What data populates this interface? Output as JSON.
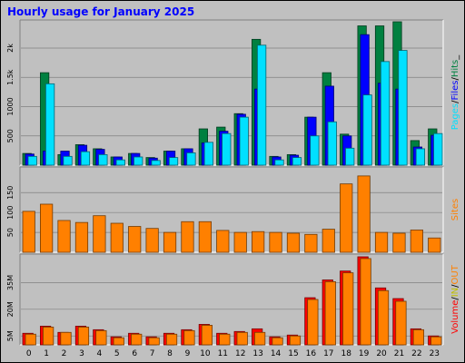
{
  "title": "Hourly usage for January 2025",
  "colors": {
    "frame_bg": "#c0c0c0",
    "plot_bg": "#c0c0c0",
    "title": "#0000ff",
    "hits": "#008040",
    "files": "#0000ff",
    "pages": "#00e0ff",
    "sites": "#ff8000",
    "volume": "#ff0000",
    "in": "#c0c000",
    "out": "#ff8000"
  },
  "chart_data": {
    "type": "bar",
    "categories": [
      "0",
      "1",
      "2",
      "3",
      "4",
      "5",
      "6",
      "7",
      "8",
      "9",
      "10",
      "11",
      "12",
      "13",
      "14",
      "15",
      "16",
      "17",
      "18",
      "19",
      "20",
      "21",
      "22",
      "23"
    ],
    "panels": [
      {
        "id": "usage",
        "ylabel": [
          "Pages",
          "/",
          "Files",
          "/",
          "Hits",
          "_"
        ],
        "ylabel_colors": [
          "#00e0ff",
          "#000000",
          "#0000ff",
          "#000000",
          "#008040",
          "#000000"
        ],
        "yticks": [
          {
            "value": 500,
            "label": "500"
          },
          {
            "value": 1000,
            "label": "1000"
          },
          {
            "value": 1500,
            "label": "1.5k"
          },
          {
            "value": 2000,
            "label": "2k"
          }
        ],
        "ylim": [
          0,
          2450
        ],
        "series": [
          {
            "name": "Hits",
            "color": "#008040",
            "values": [
              200,
              1580,
              180,
              350,
              280,
              140,
              200,
              130,
              240,
              280,
              620,
              650,
              880,
              2150,
              150,
              180,
              820,
              1580,
              530,
              2380,
              2380,
              2450,
              420,
              620
            ]
          },
          {
            "name": "Files",
            "color": "#0000ff",
            "values": [
              190,
              240,
              240,
              340,
              270,
              140,
              200,
              120,
              240,
              280,
              380,
              580,
              870,
              1300,
              140,
              170,
              820,
              1350,
              500,
              2230,
              1400,
              1300,
              310,
              510
            ]
          },
          {
            "name": "Pages",
            "color": "#00e0ff",
            "values": [
              150,
              1390,
              150,
              230,
              180,
              90,
              140,
              80,
              130,
              210,
              390,
              540,
              820,
              2050,
              90,
              130,
              500,
              740,
              290,
              1200,
              1770,
              1960,
              280,
              540
            ]
          }
        ]
      },
      {
        "id": "sites",
        "ylabel": [
          "Sites"
        ],
        "ylabel_colors": [
          "#ff8000"
        ],
        "yticks": [
          {
            "value": 50,
            "label": "50"
          },
          {
            "value": 100,
            "label": "100"
          },
          {
            "value": 150,
            "label": "150"
          }
        ],
        "ylim": [
          0,
          210
        ],
        "series": [
          {
            "name": "Sites",
            "color": "#ff8000",
            "values": [
              103,
              121,
              80,
              75,
              92,
              73,
              65,
              60,
              50,
              77,
              77,
              55,
              50,
              52,
              50,
              48,
              45,
              58,
              172,
              192,
              50,
              48,
              56,
              36
            ]
          }
        ]
      },
      {
        "id": "volume",
        "ylabel": [
          "Volume",
          "/",
          "IN",
          "/",
          "OUT"
        ],
        "ylabel_colors": [
          "#ff0000",
          "#000000",
          "#c0c000",
          "#000000",
          "#ff8000"
        ],
        "yticks": [
          {
            "value": 5,
            "label": "5M"
          },
          {
            "value": 20,
            "label": "20M"
          },
          {
            "value": 35,
            "label": "35M"
          }
        ],
        "ylim": [
          0,
          50
        ],
        "series": [
          {
            "name": "Volume",
            "color": "#ff0000",
            "values": [
              6.5,
              10.5,
              7.0,
              10.5,
              8.5,
              4.5,
              6.5,
              4.5,
              6.5,
              8.5,
              11.5,
              6.5,
              7.5,
              9.0,
              4.5,
              5.5,
              26.5,
              36.5,
              41.5,
              49.5,
              32.0,
              26.0,
              9.0,
              5.0
            ]
          },
          {
            "name": "OUT",
            "color": "#ff8000",
            "values": [
              6.0,
              10.0,
              7.0,
              10.0,
              8.0,
              4.0,
              6.0,
              4.0,
              6.0,
              8.0,
              11.0,
              6.0,
              7.0,
              7.0,
              4.0,
              5.0,
              25.5,
              35.5,
              40.5,
              48.5,
              30.5,
              24.5,
              8.5,
              4.5
            ]
          }
        ]
      }
    ]
  }
}
